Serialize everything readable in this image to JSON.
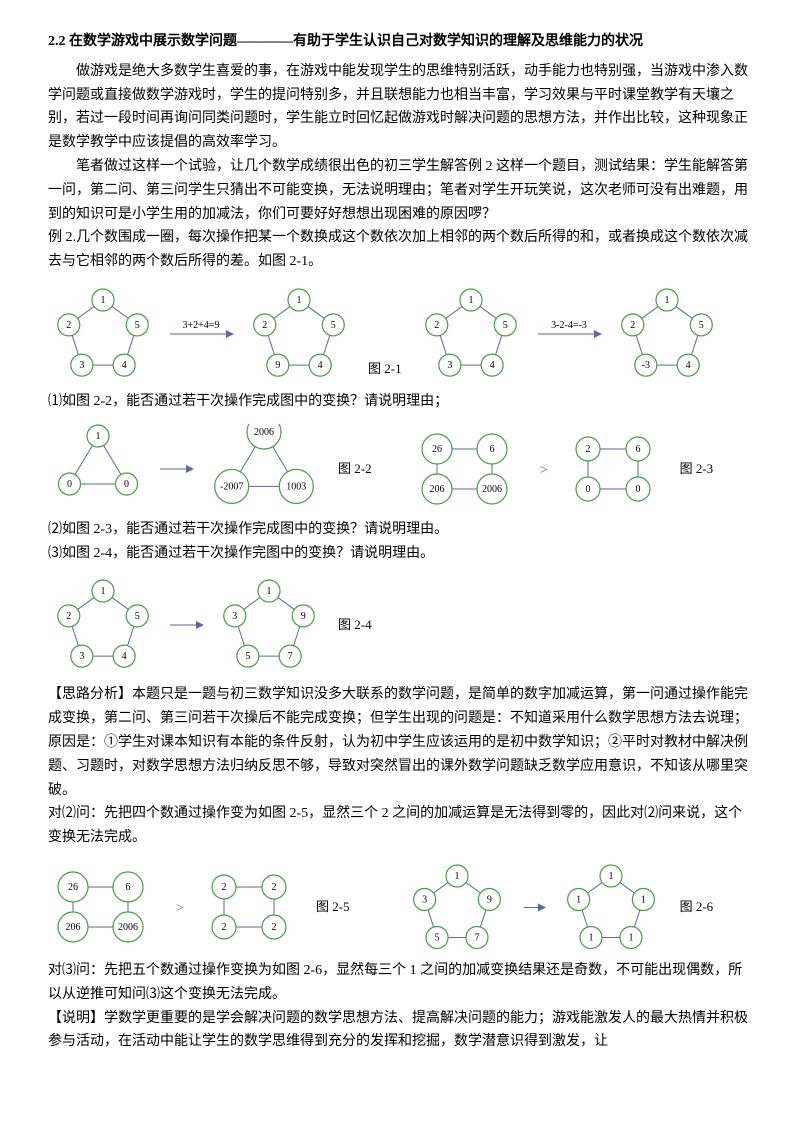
{
  "title": "2.2 在数学游戏中展示数学问题————有助于学生认识自己对数学知识的理解及思维能力的状况",
  "p1": "做游戏是绝大多数学生喜爱的事，在游戏中能发现学生的思维特别活跃，动手能力也特别强，当游戏中渗入数学问题或直接做数学游戏时，学生的提问特别多，并且联想能力也相当丰富，学习效果与平时课堂教学有天壤之别，若过一段时间再询问同类问题时，学生能立时回忆起做游戏时解决问题的思想方法，并作出比较，这种现象正是数学教学中应该提倡的高效率学习。",
  "p2": "笔者做过这样一个试验，让几个数学成绩很出色的初三学生解答例 2 这样一个题目，测试结果：学生能解答第一问，第二问、第三问学生只猜出不可能变换，无法说明理由；笔者对学生开玩笑说，这次老师可没有出难题，用到的知识可是小学生用的加减法，你们可要好好想想出现困难的原因啰？",
  "p3": "例 2.几个数围成一圈，每次操作把某一个数换成这个数依次加上相邻的两个数后所得的和，或者换成这个数依次减去与它相邻的两个数后所得的差。如图 2-1。",
  "fig21": {
    "label": "图 2-1",
    "op1": "3+2+4=9",
    "op2": "3-2-4=-3",
    "penta_a": [
      "1",
      "2",
      "3",
      "4",
      "5"
    ],
    "penta_b": [
      "1",
      "2",
      "9",
      "4",
      "5"
    ],
    "penta_c": [
      "1",
      "2",
      "3",
      "4",
      "5"
    ],
    "penta_d": [
      "1",
      "2",
      "-3",
      "4",
      "5"
    ]
  },
  "q1": "⑴如图 2-2，能否通过若干次操作完成图中的变换？请说明理由；",
  "fig22": {
    "label": "图 2-2",
    "tri_a": [
      "1",
      "0",
      "0"
    ],
    "tri_b": [
      "2006",
      "-2007",
      "1003"
    ]
  },
  "fig23": {
    "label": "图 2-3",
    "sq_a": [
      "26",
      "6",
      "206",
      "2006"
    ],
    "sq_b": [
      "2",
      "6",
      "0",
      "0"
    ]
  },
  "q2": "⑵如图 2-3，能否通过若干次操作完成图中的变换？请说明理由。",
  "q3": "⑶如图 2-4，能否通过若干次操作完图中的变换？请说明理由。",
  "fig24": {
    "label": "图 2-4",
    "penta_a": [
      "1",
      "2",
      "3",
      "4",
      "5"
    ],
    "penta_b": [
      "1",
      "3",
      "5",
      "7",
      "9"
    ]
  },
  "analysis1": "【思路分析】本题只是一题与初三数学知识没多大联系的数学问题，是简单的数字加减运算，第一问通过操作能完成变换，第二问、第三问若干次操后不能完成变换；但学生出现的问题是：不知道采用什么数学思想方法去说理；原因是：①学生对课本知识有本能的条件反射，认为初中学生应该运用的是初中数学知识；②平时对教材中解决例题、习题时，对数学思想方法归纳反思不够，导致对突然冒出的课外数学问题缺乏数学应用意识，不知该从哪里突破。",
  "analysis2_a": "对⑵问：先把四个数通过操作变为如图 2-5，显然三个 2 之间的加减运算是无法得到零的，因此对⑵问来说，这个变换无法完成。",
  "fig25": {
    "label": "图 2-5",
    "sq_a": [
      "26",
      "6",
      "206",
      "2006"
    ],
    "sq_b": [
      "2",
      "2",
      "2",
      "2"
    ]
  },
  "fig26": {
    "label": "图 2-6",
    "penta_a": [
      "1",
      "3",
      "5",
      "7",
      "9"
    ],
    "penta_b": [
      "1",
      "1",
      "1",
      "1",
      "1"
    ]
  },
  "analysis3": "对⑶问：先把五个数通过操作变换为如图 2-6，显然每三个 1 之间的加减变换结果还是奇数，不可能出现偶数，所以从逆推可知问⑶这个变换无法完成。",
  "note": "【说明】学数学更重要的是学会解决问题的数学思想方法、提高解决问题的能力；游戏能激发人的最大热情并积极参与活动，在活动中能让学生的数学思维得到充分的发挥和挖掘，数学潜意识得到激发，让",
  "style": {
    "circle_stroke": "#4a9b4a",
    "circle_fill": "#ffffff",
    "edge_color": "#5a6a9a",
    "arrow_color": "#5a6a9a",
    "text_color": "#000000",
    "circle_r": 11
  }
}
